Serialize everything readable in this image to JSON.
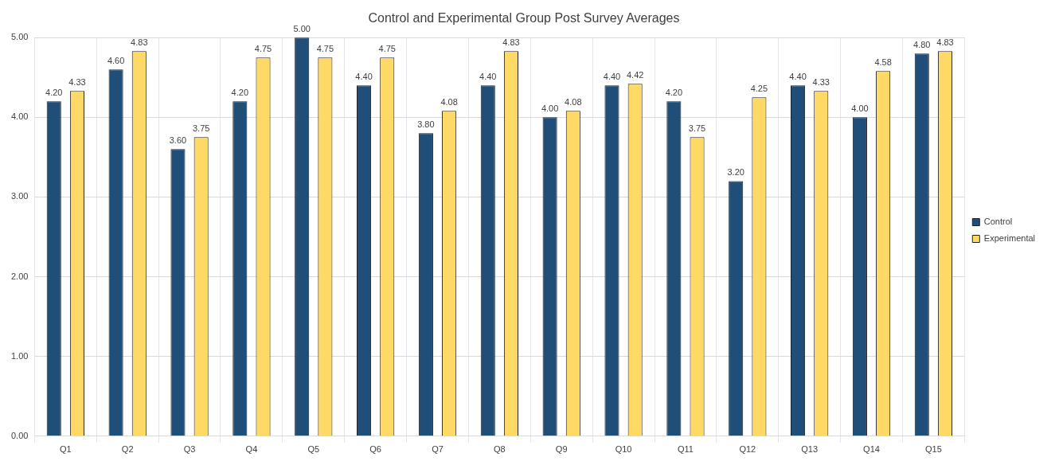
{
  "chart_data": {
    "type": "bar",
    "title": "Control and Experimental Group Post Survey Averages",
    "categories": [
      "Q1",
      "Q2",
      "Q3",
      "Q4",
      "Q5",
      "Q6",
      "Q7",
      "Q8",
      "Q9",
      "Q10",
      "Q11",
      "Q12",
      "Q13",
      "Q14",
      "Q15"
    ],
    "series": [
      {
        "name": "Control",
        "color": "#1f4e79",
        "values": [
          4.2,
          4.6,
          3.6,
          4.2,
          5.0,
          4.4,
          3.8,
          4.4,
          4.0,
          4.4,
          4.2,
          3.2,
          4.4,
          4.0,
          4.8
        ],
        "value_labels": [
          "4.20",
          "4.60",
          "3.60",
          "4.20",
          "5.00",
          "4.40",
          "3.80",
          "4.40",
          "4.00",
          "4.40",
          "4.20",
          "3.20",
          "4.40",
          "4.00",
          "4.80"
        ]
      },
      {
        "name": "Experimental",
        "color": "#ffd966",
        "values": [
          4.33,
          4.83,
          3.75,
          4.75,
          4.75,
          4.75,
          4.08,
          4.83,
          4.08,
          4.42,
          3.75,
          4.25,
          4.33,
          4.58,
          4.83
        ],
        "value_labels": [
          "4.33",
          "4.83",
          "3.75",
          "4.75",
          "4.75",
          "4.75",
          "4.08",
          "4.83",
          "4.08",
          "4.42",
          "3.75",
          "4.25",
          "4.33",
          "4.58",
          "4.83"
        ]
      }
    ],
    "ylim": [
      0,
      5
    ],
    "yticks": [
      {
        "value": 0,
        "label": "0.00"
      },
      {
        "value": 1,
        "label": "1.00"
      },
      {
        "value": 2,
        "label": "2.00"
      },
      {
        "value": 3,
        "label": "3.00"
      },
      {
        "value": 4,
        "label": "4.00"
      },
      {
        "value": 5,
        "label": "5.00"
      }
    ],
    "grid": true,
    "legend": "right"
  }
}
